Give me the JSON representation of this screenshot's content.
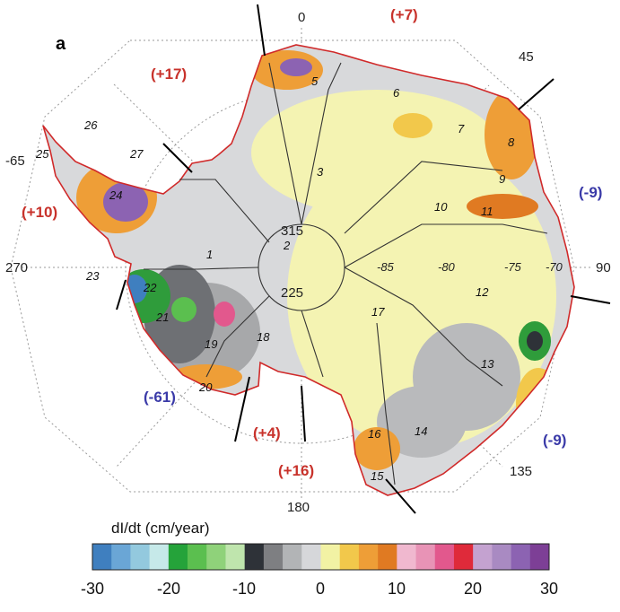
{
  "panel_label": "a",
  "longitude_labels": [
    "0",
    "45",
    "90",
    "135",
    "180",
    "225",
    "270",
    "315"
  ],
  "outer_latitude_labels": [
    "-65"
  ],
  "inner_latitude_labels": [
    "-70",
    "-75",
    "-80",
    "-85"
  ],
  "basins": [
    "1",
    "2",
    "3",
    "5",
    "6",
    "7",
    "8",
    "9",
    "10",
    "11",
    "12",
    "13",
    "14",
    "15",
    "16",
    "17",
    "18",
    "19",
    "20",
    "21",
    "22",
    "23",
    "24",
    "25",
    "26",
    "27"
  ],
  "regional_totals": [
    {
      "value": "(+7)",
      "color": "#c8322b"
    },
    {
      "value": "(+17)",
      "color": "#c8322b"
    },
    {
      "value": "(+10)",
      "color": "#c8322b"
    },
    {
      "value": "(-9)",
      "color": "#3a3aa8"
    },
    {
      "value": "(-9)",
      "color": "#3a3aa8"
    },
    {
      "value": "(-61)",
      "color": "#3a3aa8"
    },
    {
      "value": "(+4)",
      "color": "#c8322b"
    },
    {
      "value": "(+16)",
      "color": "#c8322b"
    }
  ],
  "colorbar": {
    "title": "dI/dt (cm/year)",
    "min": -30,
    "max": 30,
    "ticks": [
      "-30",
      "-20",
      "-10",
      "0",
      "10",
      "20",
      "30"
    ],
    "colors": [
      "#3f7fbf",
      "#6aa6d6",
      "#93c9de",
      "#c6e9e9",
      "#25a33a",
      "#5bbf4f",
      "#8fd27a",
      "#bfe5ad",
      "#2e3238",
      "#7e7f82",
      "#b2b4b6",
      "#d6d7da",
      "#f2f2a4",
      "#f2c84b",
      "#ee9e37",
      "#e07a22",
      "#f0b8cf",
      "#e893b6",
      "#e2588d",
      "#df2a3a",
      "#c4a2d0",
      "#a98ac2",
      "#8c63b2",
      "#7d3f96"
    ]
  }
}
